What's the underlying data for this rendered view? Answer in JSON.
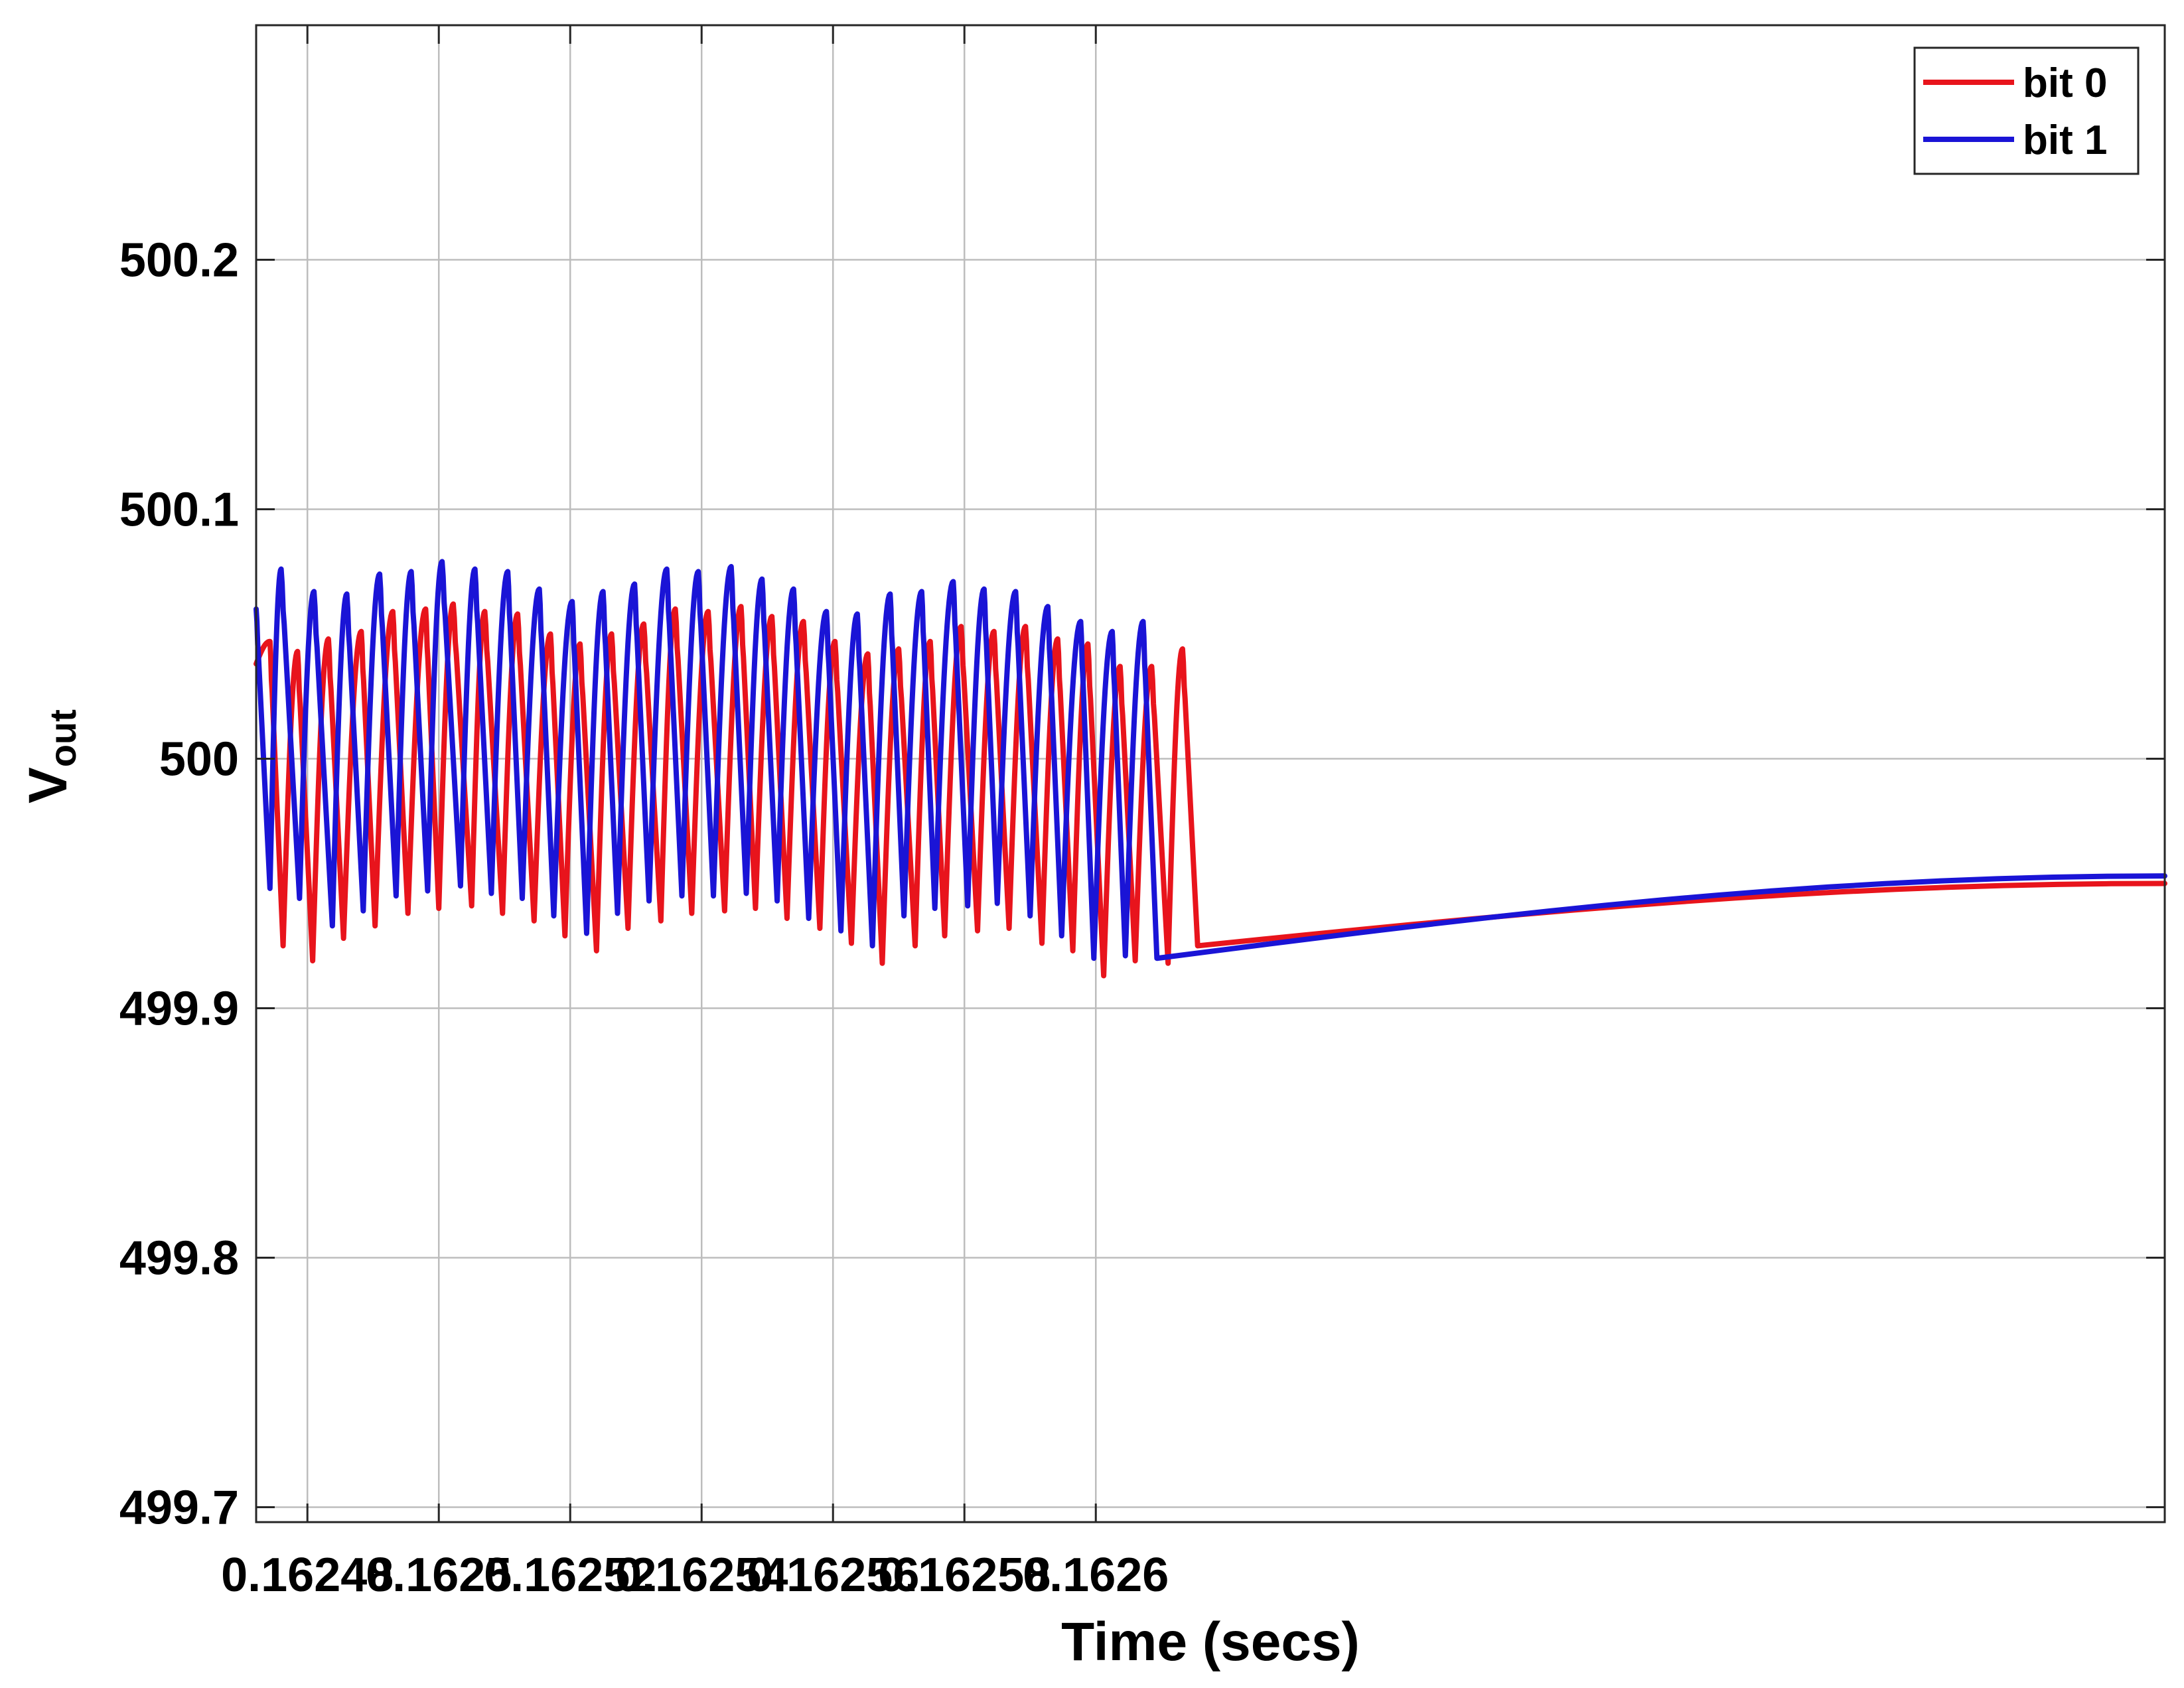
{
  "chart_data": {
    "type": "line",
    "title": "",
    "xlabel": "Time (secs)",
    "ylabel_main": "V",
    "ylabel_sub": "out",
    "xlim": [
      0.1624722,
      0.1627627
    ],
    "ylim": [
      499.694,
      500.294
    ],
    "xticks": [
      0.16248,
      0.1625,
      0.16252,
      0.16254,
      0.16256,
      0.16258,
      0.1626
    ],
    "xtick_labels": [
      "0.16248",
      "0.1625",
      "0.16252",
      "0.16254",
      "0.16256",
      "0.16258",
      "0.1626"
    ],
    "yticks": [
      499.7,
      499.8,
      499.9,
      500,
      500.1,
      500.2
    ],
    "ytick_labels": [
      "499.7",
      "499.8",
      "499.9",
      "500",
      "500.1",
      "500.2"
    ],
    "grid": true,
    "legend_position": "top-right",
    "series": [
      {
        "name": "bit 0",
        "color": "#e8141c",
        "x_start": 0.1624722,
        "x_end": 0.1627627,
        "peaks": [
          [
            0.1624743,
            500.047
          ],
          [
            0.1624785,
            500.043
          ],
          [
            0.1624832,
            500.048
          ],
          [
            0.1624882,
            500.051
          ],
          [
            0.162493,
            500.059
          ],
          [
            0.162498,
            500.06
          ],
          [
            0.1625022,
            500.062
          ],
          [
            0.162507,
            500.059
          ],
          [
            0.162512,
            500.058
          ],
          [
            0.162517,
            500.05
          ],
          [
            0.1625215,
            500.046
          ],
          [
            0.1625263,
            500.05
          ],
          [
            0.1625312,
            500.054
          ],
          [
            0.162536,
            500.06
          ],
          [
            0.162541,
            500.059
          ],
          [
            0.162546,
            500.061
          ],
          [
            0.1625507,
            500.057
          ],
          [
            0.1625555,
            500.055
          ],
          [
            0.1625603,
            500.047
          ],
          [
            0.1625653,
            500.042
          ],
          [
            0.16257,
            500.044
          ],
          [
            0.1625748,
            500.047
          ],
          [
            0.1625795,
            500.053
          ],
          [
            0.1625845,
            500.051
          ],
          [
            0.1625893,
            500.053
          ],
          [
            0.1625942,
            500.048
          ],
          [
            0.1625988,
            500.046
          ],
          [
            0.1626037,
            500.037
          ],
          [
            0.1626085,
            500.037
          ],
          [
            0.1626132,
            500.044
          ]
        ],
        "troughs": [
          [
            0.1624722,
            500.038
          ],
          [
            0.1624763,
            499.925
          ],
          [
            0.1624808,
            499.919
          ],
          [
            0.1624855,
            499.928
          ],
          [
            0.1624903,
            499.933
          ],
          [
            0.1624953,
            499.938
          ],
          [
            0.1625,
            499.94
          ],
          [
            0.162505,
            499.941
          ],
          [
            0.1625097,
            499.938
          ],
          [
            0.1625145,
            499.935
          ],
          [
            0.1625192,
            499.929
          ],
          [
            0.162524,
            499.923
          ],
          [
            0.1625288,
            499.932
          ],
          [
            0.1625338,
            499.935
          ],
          [
            0.1625385,
            499.938
          ],
          [
            0.1625435,
            499.939
          ],
          [
            0.1625482,
            499.94
          ],
          [
            0.162553,
            499.936
          ],
          [
            0.162558,
            499.932
          ],
          [
            0.1625628,
            499.926
          ],
          [
            0.1625675,
            499.918
          ],
          [
            0.1625725,
            499.925
          ],
          [
            0.162577,
            499.929
          ],
          [
            0.162582,
            499.931
          ],
          [
            0.1625868,
            499.932
          ],
          [
            0.1625918,
            499.926
          ],
          [
            0.1625965,
            499.923
          ],
          [
            0.1626012,
            499.913
          ],
          [
            0.162606,
            499.919
          ],
          [
            0.162611,
            499.918
          ],
          [
            0.1626155,
            499.925
          ],
          [
            0.1627627,
            499.95
          ]
        ]
      },
      {
        "name": "bit 1",
        "color": "#1a14d6",
        "x_start": 0.1624722,
        "x_end": 0.1627627,
        "peaks": [
          [
            0.1624722,
            500.06
          ],
          [
            0.162476,
            500.076
          ],
          [
            0.162481,
            500.067
          ],
          [
            0.162486,
            500.066
          ],
          [
            0.162491,
            500.074
          ],
          [
            0.1624958,
            500.075
          ],
          [
            0.1625005,
            500.079
          ],
          [
            0.1625055,
            500.076
          ],
          [
            0.1625105,
            500.075
          ],
          [
            0.1625153,
            500.068
          ],
          [
            0.1625203,
            500.063
          ],
          [
            0.162525,
            500.067
          ],
          [
            0.1625298,
            500.07
          ],
          [
            0.1625347,
            500.076
          ],
          [
            0.1625395,
            500.075
          ],
          [
            0.1625445,
            500.077
          ],
          [
            0.1625492,
            500.072
          ],
          [
            0.162554,
            500.068
          ],
          [
            0.162559,
            500.059
          ],
          [
            0.1625637,
            500.058
          ],
          [
            0.1625687,
            500.066
          ],
          [
            0.1625735,
            500.067
          ],
          [
            0.1625783,
            500.071
          ],
          [
            0.162583,
            500.068
          ],
          [
            0.1625878,
            500.067
          ],
          [
            0.1625927,
            500.061
          ],
          [
            0.1625977,
            500.055
          ],
          [
            0.1626025,
            500.051
          ],
          [
            0.1626072,
            500.055
          ]
        ],
        "troughs": [
          [
            0.1624743,
            499.948
          ],
          [
            0.1624788,
            499.944
          ],
          [
            0.1624838,
            499.933
          ],
          [
            0.1624885,
            499.939
          ],
          [
            0.1624935,
            499.945
          ],
          [
            0.1624983,
            499.947
          ],
          [
            0.1625033,
            499.949
          ],
          [
            0.162508,
            499.946
          ],
          [
            0.1625127,
            499.944
          ],
          [
            0.1625175,
            499.937
          ],
          [
            0.1625225,
            499.93
          ],
          [
            0.1625272,
            499.938
          ],
          [
            0.162532,
            499.943
          ],
          [
            0.162537,
            499.945
          ],
          [
            0.1625418,
            499.945
          ],
          [
            0.1625468,
            499.946
          ],
          [
            0.1625515,
            499.943
          ],
          [
            0.1625563,
            499.936
          ],
          [
            0.1625612,
            499.931
          ],
          [
            0.162566,
            499.925
          ],
          [
            0.1625708,
            499.937
          ],
          [
            0.1625755,
            499.94
          ],
          [
            0.1625805,
            499.941
          ],
          [
            0.162585,
            499.942
          ],
          [
            0.16259,
            499.937
          ],
          [
            0.1625948,
            499.929
          ],
          [
            0.1625997,
            499.92
          ],
          [
            0.1626045,
            499.921
          ],
          [
            0.1626093,
            499.92
          ],
          [
            0.1627627,
            499.953
          ]
        ]
      }
    ]
  }
}
